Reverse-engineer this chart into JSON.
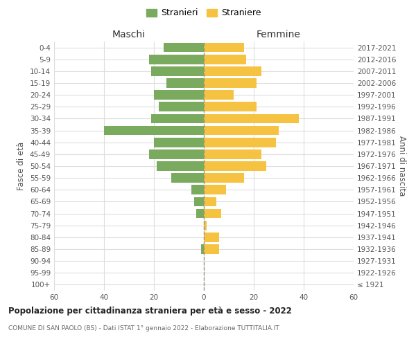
{
  "age_groups": [
    "100+",
    "95-99",
    "90-94",
    "85-89",
    "80-84",
    "75-79",
    "70-74",
    "65-69",
    "60-64",
    "55-59",
    "50-54",
    "45-49",
    "40-44",
    "35-39",
    "30-34",
    "25-29",
    "20-24",
    "15-19",
    "10-14",
    "5-9",
    "0-4"
  ],
  "birth_years": [
    "≤ 1921",
    "1922-1926",
    "1927-1931",
    "1932-1936",
    "1937-1941",
    "1942-1946",
    "1947-1951",
    "1952-1956",
    "1957-1961",
    "1962-1966",
    "1967-1971",
    "1972-1976",
    "1977-1981",
    "1982-1986",
    "1987-1991",
    "1992-1996",
    "1997-2001",
    "2002-2006",
    "2007-2011",
    "2012-2016",
    "2017-2021"
  ],
  "maschi": [
    0,
    0,
    0,
    1,
    0,
    0,
    3,
    4,
    5,
    13,
    19,
    22,
    20,
    40,
    21,
    18,
    20,
    15,
    21,
    22,
    16
  ],
  "femmine": [
    0,
    0,
    0,
    6,
    6,
    1,
    7,
    5,
    9,
    16,
    25,
    23,
    29,
    30,
    38,
    21,
    12,
    21,
    23,
    17,
    16
  ],
  "maschi_color": "#7aaa5e",
  "femmine_color": "#f5c242",
  "grid_color": "#dddddd",
  "dashed_line_color": "#999977",
  "title": "Popolazione per cittadinanza straniera per età e sesso - 2022",
  "subtitle": "COMUNE DI SAN PAOLO (BS) - Dati ISTAT 1° gennaio 2022 - Elaborazione TUTTITALIA.IT",
  "xlabel_left": "Maschi",
  "xlabel_right": "Femmine",
  "ylabel_left": "Fasce di età",
  "ylabel_right": "Anni di nascita",
  "legend_maschi": "Stranieri",
  "legend_femmine": "Straniere",
  "xlim": 60,
  "background_color": "#ffffff"
}
